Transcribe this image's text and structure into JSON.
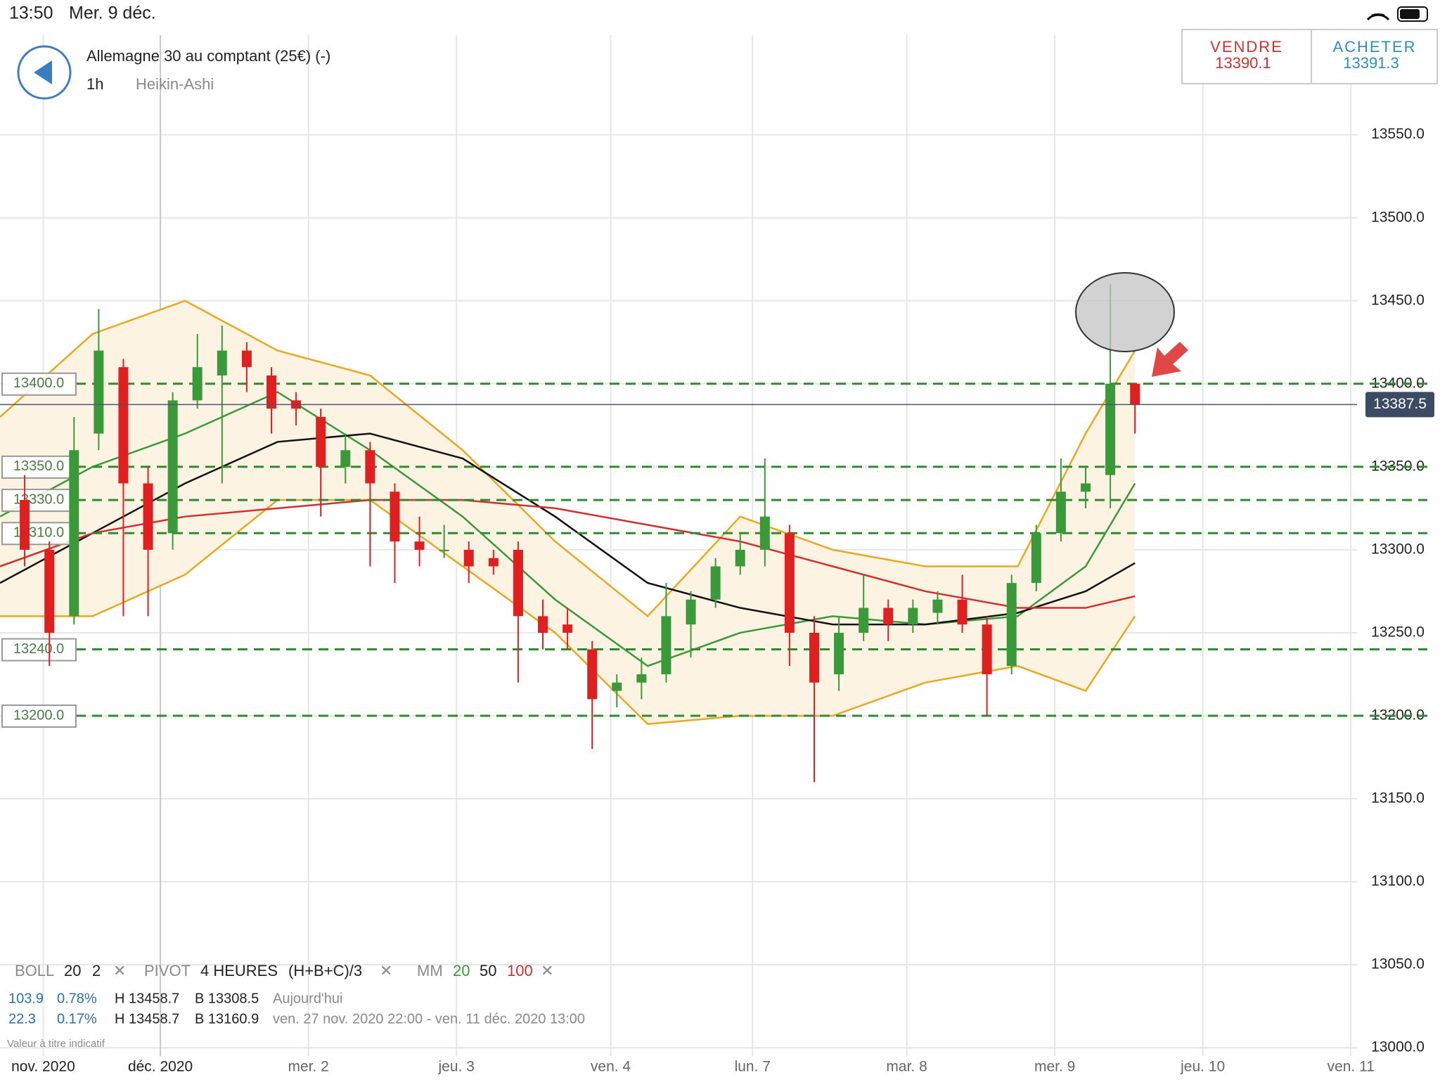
{
  "status_bar": {
    "time": "13:50",
    "date": "Mer. 9 déc."
  },
  "header": {
    "instrument": "Allemagne 30 au comptant (25€) (-)",
    "timeframe": "1h",
    "chart_style": "Heikin-Ashi"
  },
  "trade": {
    "sell_label": "VENDRE",
    "sell_price": "13390.1",
    "buy_label": "ACHETER",
    "buy_price": "13391.3"
  },
  "indicators": {
    "boll": {
      "name": "BOLL",
      "period": "20",
      "deviation": "2"
    },
    "pivot": {
      "name": "PIVOT",
      "period": "4 HEURES",
      "formula": "(H+B+C)/3"
    },
    "mm": {
      "name": "MM",
      "periods": [
        "20",
        "50",
        "100"
      ]
    },
    "rows": [
      [
        "103.9",
        "0.78%",
        "H 13458.7",
        "B 13308.5",
        "Aujourd'hui"
      ],
      [
        "22.3",
        "0.17%",
        "H 13458.7",
        "B 13160.9",
        "ven. 27 nov. 2020 22:00 - ven. 11 déc. 2020 13:00"
      ]
    ],
    "note": "Valeur à titre indicatif"
  },
  "chart_data": {
    "type": "candlestick",
    "xlim": [
      0,
      220
    ],
    "ylim": [
      12995,
      13610
    ],
    "grid": true,
    "xticks": [
      {
        "value": 7,
        "label": "nov. 2020"
      },
      {
        "value": 26,
        "label": "déc. 2020"
      },
      {
        "value": 50,
        "label": "mer. 2"
      },
      {
        "value": 74,
        "label": "jeu. 3"
      },
      {
        "value": 99,
        "label": "ven. 4"
      },
      {
        "value": 122,
        "label": "lun. 7"
      },
      {
        "value": 147,
        "label": "mar. 8"
      },
      {
        "value": 171,
        "label": "mer. 9"
      },
      {
        "value": 195,
        "label": "jeu. 10"
      },
      {
        "value": 219,
        "label": "ven. 11"
      }
    ],
    "yticks": [
      {
        "value": 13000,
        "label": "13000.0"
      },
      {
        "value": 13050,
        "label": "13050.0"
      },
      {
        "value": 13100,
        "label": "13100.0"
      },
      {
        "value": 13150,
        "label": "13150.0"
      },
      {
        "value": 13200,
        "label": "13200.0"
      },
      {
        "value": 13250,
        "label": "13250.0"
      },
      {
        "value": 13300,
        "label": "13300.0"
      },
      {
        "value": 13350,
        "label": "13350.0"
      },
      {
        "value": 13400,
        "label": "13400.0"
      },
      {
        "value": 13450,
        "label": "13450.0"
      },
      {
        "value": 13500,
        "label": "13500.0"
      },
      {
        "value": 13550,
        "label": "13550.0"
      }
    ],
    "candles": {
      "up_color": "#3a9a3a",
      "down_color": "#e02020",
      "x": [
        4,
        8,
        12,
        16,
        20,
        24,
        28,
        32,
        36,
        40,
        44,
        48,
        52,
        56,
        60,
        64,
        68,
        72,
        76,
        80,
        84,
        88,
        92,
        96,
        100,
        104,
        108,
        112,
        116,
        120,
        124,
        128,
        132,
        136,
        140,
        144,
        148,
        152,
        156,
        160,
        164,
        168,
        172,
        176,
        180,
        184
      ],
      "open": [
        13330,
        13300,
        13260,
        13370,
        13410,
        13340,
        13310,
        13390,
        13405,
        13420,
        13405,
        13390,
        13380,
        13350,
        13360,
        13335,
        13305,
        13300,
        13300,
        13295,
        13300,
        13260,
        13255,
        13240,
        13215,
        13220,
        13225,
        13255,
        13270,
        13290,
        13300,
        13310,
        13250,
        13225,
        13250,
        13265,
        13255,
        13262,
        13270,
        13255,
        13230,
        13280,
        13310,
        13335,
        13345,
        13400
      ],
      "high": [
        13345,
        13305,
        13380,
        13445,
        13415,
        13350,
        13395,
        13430,
        13435,
        13425,
        13410,
        13395,
        13385,
        13370,
        13365,
        13340,
        13320,
        13315,
        13305,
        13300,
        13305,
        13270,
        13265,
        13245,
        13225,
        13235,
        13280,
        13275,
        13295,
        13310,
        13355,
        13315,
        13260,
        13260,
        13285,
        13270,
        13270,
        13275,
        13285,
        13260,
        13285,
        13315,
        13355,
        13350,
        13460,
        13400
      ],
      "low": [
        13290,
        13230,
        13255,
        13360,
        13260,
        13260,
        13300,
        13385,
        13340,
        13395,
        13370,
        13375,
        13320,
        13340,
        13290,
        13280,
        13290,
        13295,
        13280,
        13285,
        13220,
        13240,
        13240,
        13180,
        13205,
        13210,
        13220,
        13235,
        13265,
        13285,
        13290,
        13230,
        13160,
        13215,
        13245,
        13245,
        13250,
        13255,
        13250,
        13200,
        13225,
        13275,
        13305,
        13325,
        13325,
        13370
      ],
      "close": [
        13300,
        13250,
        13360,
        13420,
        13340,
        13300,
        13390,
        13410,
        13420,
        13410,
        13385,
        13385,
        13350,
        13360,
        13340,
        13305,
        13300,
        13300,
        13290,
        13290,
        13260,
        13250,
        13250,
        13210,
        13220,
        13225,
        13260,
        13270,
        13290,
        13300,
        13320,
        13250,
        13220,
        13250,
        13265,
        13255,
        13265,
        13270,
        13255,
        13225,
        13280,
        13310,
        13335,
        13340,
        13400,
        13387.5
      ]
    },
    "lines": {
      "x": [
        0,
        15,
        30,
        45,
        60,
        75,
        90,
        105,
        120,
        135,
        150,
        165,
        176,
        184
      ],
      "band_fill": "#fdf3e3",
      "series": [
        {
          "color": "#e8a820",
          "values": [
            13380,
            13430,
            13450,
            13420,
            13405,
            13360,
            13305,
            13260,
            13320,
            13300,
            13290,
            13290,
            13370,
            13420
          ]
        },
        {
          "color": "#e8a820",
          "values": [
            13260,
            13260,
            13285,
            13330,
            13330,
            13290,
            13250,
            13195,
            13200,
            13200,
            13220,
            13230,
            13215,
            13260
          ]
        },
        {
          "color": "#3a9a3a",
          "values": [
            13320,
            13350,
            13370,
            13395,
            13360,
            13320,
            13270,
            13230,
            13250,
            13260,
            13255,
            13260,
            13290,
            13340
          ]
        },
        {
          "color": "#111111",
          "values": [
            13280,
            13310,
            13340,
            13365,
            13370,
            13355,
            13320,
            13280,
            13265,
            13255,
            13255,
            13262,
            13275,
            13292
          ]
        },
        {
          "color": "#d03030",
          "values": [
            13290,
            13310,
            13320,
            13325,
            13330,
            13330,
            13325,
            13315,
            13305,
            13290,
            13275,
            13265,
            13265,
            13272
          ]
        }
      ]
    },
    "pivot_lines": [
      {
        "value": 13400,
        "label": "13400.0"
      },
      {
        "value": 13350,
        "label": "13350.0"
      },
      {
        "value": 13330,
        "label": "13330.0"
      },
      {
        "value": 13310,
        "label": "13310.0"
      },
      {
        "value": 13240,
        "label": "13240.0"
      },
      {
        "value": 13200,
        "label": "13200.0"
      }
    ],
    "pivot_color": "#2e8b2e",
    "last_price": 13387.5
  }
}
